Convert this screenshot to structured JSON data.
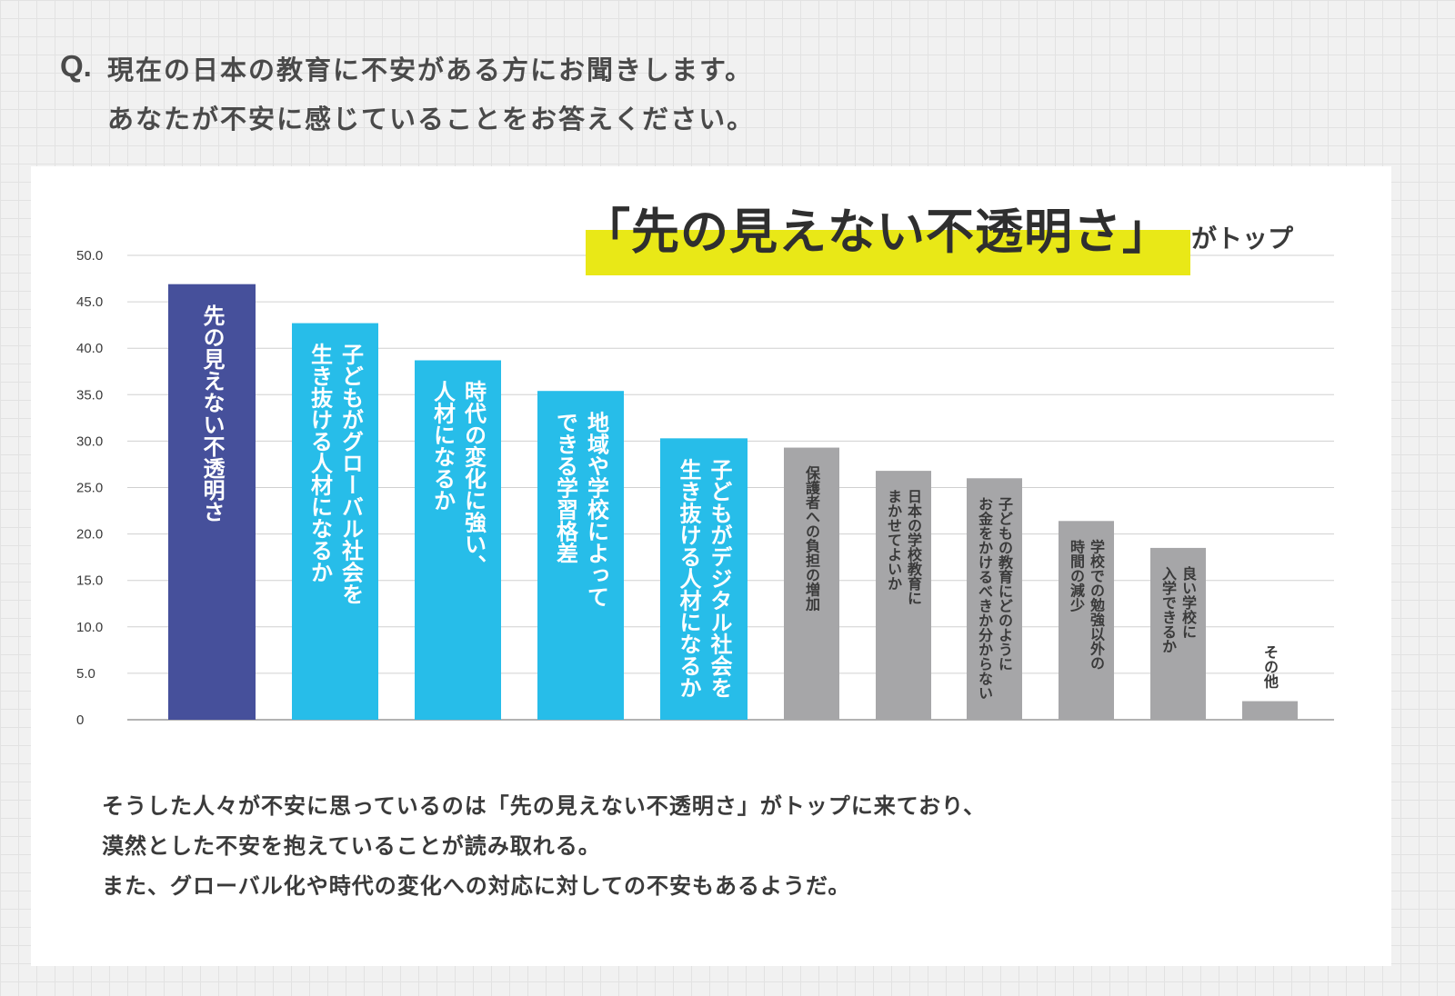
{
  "question": {
    "mark": "Q.",
    "line1": "現在の日本の教育に不安がある方にお聞きします。",
    "line2": "あなたが不安に感じていることをお答えください。"
  },
  "headline": {
    "main": "「先の見えない不透明さ」",
    "suffix": "がトップ"
  },
  "chart_data": {
    "type": "bar",
    "title": "",
    "xlabel": "",
    "ylabel": "",
    "ylim": [
      0,
      50
    ],
    "yticks": [
      "0",
      "5.0",
      "10.0",
      "15.0",
      "20.0",
      "25.0",
      "30.0",
      "35.0",
      "40.0",
      "45.0",
      "50.0"
    ],
    "grid": true,
    "categories": [
      "先の見えない不透明さ",
      "子どもがグローバル社会を生き抜ける人材になるか",
      "時代の変化に強い、人材になるか",
      "地域や学校によってできる学習格差",
      "子どもがデジタル社会を生き抜ける人材になるか",
      "保護者への負担の増加",
      "日本の学校教育にまかせてよいか",
      "子どもの教育にどのようにお金をかけるべきか分からない",
      "学校での勉強以外の時間の減少",
      "良い学校に入学できるか",
      "その他"
    ],
    "label_lines": [
      [
        "先の見えない不透明さ"
      ],
      [
        "子どもがグローバル社会を",
        "生き抜ける人材になるか"
      ],
      [
        "時代の変化に強い、",
        "人材になるか"
      ],
      [
        "地域や学校によって",
        "できる学習格差"
      ],
      [
        "子どもがデジタル社会を",
        "生き抜ける人材になるか"
      ],
      [
        "保護者への負担の増加"
      ],
      [
        "日本の学校教育に",
        "まかせてよいか"
      ],
      [
        "子どもの教育にどのように",
        "お金をかけるべきか分からない"
      ],
      [
        "学校での勉強以外の",
        "時間の減少"
      ],
      [
        "良い学校に",
        "入学できるか"
      ],
      [
        "その他"
      ]
    ],
    "values": [
      46.9,
      42.7,
      38.7,
      35.4,
      30.3,
      29.3,
      26.8,
      26.0,
      21.4,
      18.5,
      2.0
    ],
    "colors": [
      "#46509b",
      "#27bde9",
      "#27bde9",
      "#27bde9",
      "#27bde9",
      "#a6a6a8",
      "#a6a6a8",
      "#a6a6a8",
      "#a6a6a8",
      "#a6a6a8",
      "#a6a6a8"
    ]
  },
  "summary": {
    "line1": "そうした人々が不安に思っているのは「先の見えない不透明さ」がトップに来ており、",
    "line2": "漠然とした不安を抱えていることが読み取れる。",
    "line3": "また、グローバル化や時代の変化への対応に対しての不安もあるようだ。"
  }
}
